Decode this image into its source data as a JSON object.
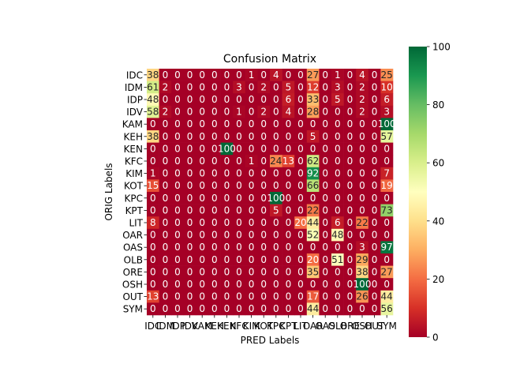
{
  "chart_data": {
    "type": "heatmap",
    "title": "Confusion Matrix",
    "xlabel": "PRED Labels",
    "ylabel": "ORIG Labels",
    "row_labels": [
      "IDC",
      "IDM",
      "IDP",
      "IDV",
      "KAM",
      "KEH",
      "KEN",
      "KFC",
      "KIM",
      "KOT",
      "KPC",
      "KPT",
      "LIT",
      "OAR",
      "OAS",
      "OLB",
      "ORE",
      "OSH",
      "OUT",
      "SYM"
    ],
    "col_labels": [
      "IDC",
      "IDM",
      "IDP",
      "IDV",
      "KAM",
      "KEH",
      "KEN",
      "KFC",
      "KIM",
      "KOT",
      "KPC",
      "KPT",
      "LIT",
      "OAR",
      "OAS",
      "OLB",
      "ORE",
      "OSH",
      "OUT",
      "SYM"
    ],
    "values": [
      [
        38,
        0,
        0,
        0,
        0,
        0,
        0,
        0,
        1,
        0,
        4,
        0,
        0,
        27,
        0,
        1,
        0,
        4,
        0,
        25
      ],
      [
        61,
        2,
        0,
        0,
        0,
        0,
        0,
        3,
        0,
        2,
        0,
        5,
        0,
        12,
        0,
        3,
        0,
        2,
        0,
        10
      ],
      [
        48,
        0,
        0,
        0,
        0,
        0,
        0,
        0,
        0,
        0,
        0,
        6,
        0,
        33,
        0,
        5,
        0,
        2,
        0,
        6
      ],
      [
        58,
        2,
        0,
        0,
        0,
        0,
        0,
        1,
        0,
        2,
        0,
        4,
        0,
        28,
        0,
        0,
        0,
        2,
        0,
        3
      ],
      [
        0,
        0,
        0,
        0,
        0,
        0,
        0,
        0,
        0,
        0,
        0,
        0,
        0,
        0,
        0,
        0,
        0,
        0,
        0,
        100
      ],
      [
        38,
        0,
        0,
        0,
        0,
        0,
        0,
        0,
        0,
        0,
        0,
        0,
        0,
        5,
        0,
        0,
        0,
        0,
        0,
        57
      ],
      [
        0,
        0,
        0,
        0,
        0,
        0,
        100,
        0,
        0,
        0,
        0,
        0,
        0,
        0,
        0,
        0,
        0,
        0,
        0,
        0
      ],
      [
        0,
        0,
        0,
        0,
        0,
        0,
        0,
        0,
        1,
        0,
        24,
        13,
        0,
        62,
        0,
        0,
        0,
        0,
        0,
        0
      ],
      [
        1,
        0,
        0,
        0,
        0,
        0,
        0,
        0,
        0,
        0,
        0,
        0,
        0,
        92,
        0,
        0,
        0,
        0,
        0,
        7
      ],
      [
        15,
        0,
        0,
        0,
        0,
        0,
        0,
        0,
        0,
        0,
        0,
        0,
        0,
        66,
        0,
        0,
        0,
        0,
        0,
        19
      ],
      [
        0,
        0,
        0,
        0,
        0,
        0,
        0,
        0,
        0,
        0,
        100,
        0,
        0,
        0,
        0,
        0,
        0,
        0,
        0,
        0
      ],
      [
        0,
        0,
        0,
        0,
        0,
        0,
        0,
        0,
        0,
        0,
        5,
        0,
        0,
        22,
        0,
        0,
        0,
        0,
        0,
        73
      ],
      [
        8,
        0,
        0,
        0,
        0,
        0,
        0,
        0,
        0,
        0,
        0,
        0,
        20,
        44,
        0,
        6,
        0,
        22,
        0,
        0
      ],
      [
        0,
        0,
        0,
        0,
        0,
        0,
        0,
        0,
        0,
        0,
        0,
        0,
        0,
        52,
        0,
        48,
        0,
        0,
        0,
        0
      ],
      [
        0,
        0,
        0,
        0,
        0,
        0,
        0,
        0,
        0,
        0,
        0,
        0,
        0,
        0,
        0,
        0,
        0,
        3,
        0,
        97
      ],
      [
        0,
        0,
        0,
        0,
        0,
        0,
        0,
        0,
        0,
        0,
        0,
        0,
        0,
        20,
        0,
        51,
        0,
        29,
        0,
        0
      ],
      [
        0,
        0,
        0,
        0,
        0,
        0,
        0,
        0,
        0,
        0,
        0,
        0,
        0,
        35,
        0,
        0,
        0,
        38,
        0,
        27
      ],
      [
        0,
        0,
        0,
        0,
        0,
        0,
        0,
        0,
        0,
        0,
        0,
        0,
        0,
        0,
        0,
        0,
        0,
        100,
        0,
        0
      ],
      [
        13,
        0,
        0,
        0,
        0,
        0,
        0,
        0,
        0,
        0,
        0,
        0,
        0,
        17,
        0,
        0,
        0,
        26,
        0,
        44
      ],
      [
        0,
        0,
        0,
        0,
        0,
        0,
        0,
        0,
        0,
        0,
        0,
        0,
        0,
        44,
        0,
        0,
        0,
        0,
        0,
        56
      ]
    ],
    "colorbar": {
      "min": 0,
      "max": 100,
      "ticks": [
        0,
        20,
        40,
        60,
        80,
        100
      ],
      "colormap": "RdYlGn"
    },
    "grid": false,
    "legend": "colorbar-right"
  }
}
